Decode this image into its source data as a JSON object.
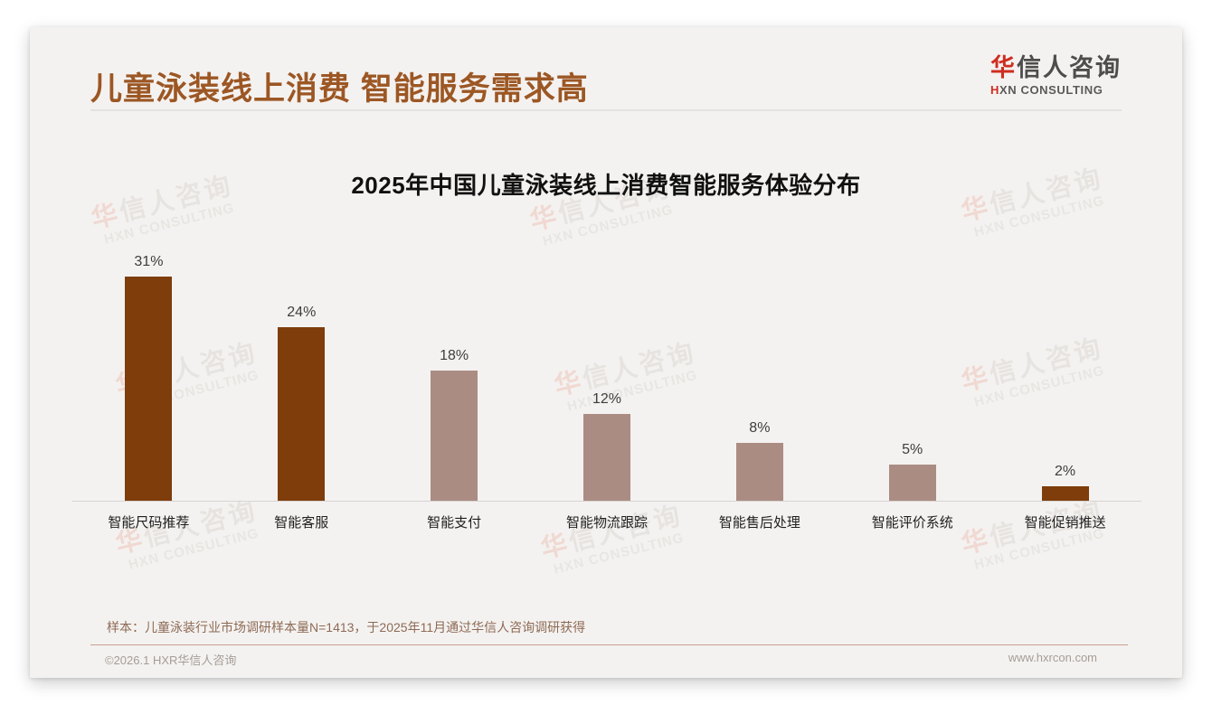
{
  "page": {
    "main_title": "儿童泳装线上消费 智能服务需求高",
    "logo": {
      "cn_accent": "华",
      "cn_rest": "信人咨询",
      "en_accent": "H",
      "en_rest": "XN CONSULTING"
    },
    "watermark": {
      "cn_accent": "华",
      "cn_rest": "信人咨询",
      "en": "HXN CONSULTING"
    },
    "sample_note": "样本：儿童泳装行业市场调研样本量N=1413，于2025年11月通过华信人咨询调研获得",
    "footer": {
      "copyright": "©2026.1 HXR华信人咨询",
      "website": "www.hxrcon.com"
    }
  },
  "chart_data": {
    "type": "bar",
    "title": "2025年中国儿童泳装线上消费智能服务体验分布",
    "categories": [
      "智能尺码推荐",
      "智能客服",
      "智能支付",
      "智能物流跟踪",
      "智能售后处理",
      "智能评价系统",
      "智能促销推送"
    ],
    "values": [
      31,
      24,
      18,
      12,
      8,
      5,
      2
    ],
    "value_labels": [
      "31%",
      "24%",
      "18%",
      "12%",
      "8%",
      "5%",
      "2%"
    ],
    "bar_colors": [
      "#7e3d0b",
      "#7e3d0b",
      "#ab8c83",
      "#ab8c83",
      "#ab8c83",
      "#ab8c83",
      "#7e3d0b"
    ],
    "xlabel": "",
    "ylabel": "",
    "ylim": [
      0,
      33
    ],
    "grid": false,
    "legend": false,
    "colors": {
      "bar_dark": "#7e3d0b",
      "bar_light": "#ab8c83",
      "title_brown": "#9c5724",
      "card_background": "#f4f2f0"
    }
  }
}
